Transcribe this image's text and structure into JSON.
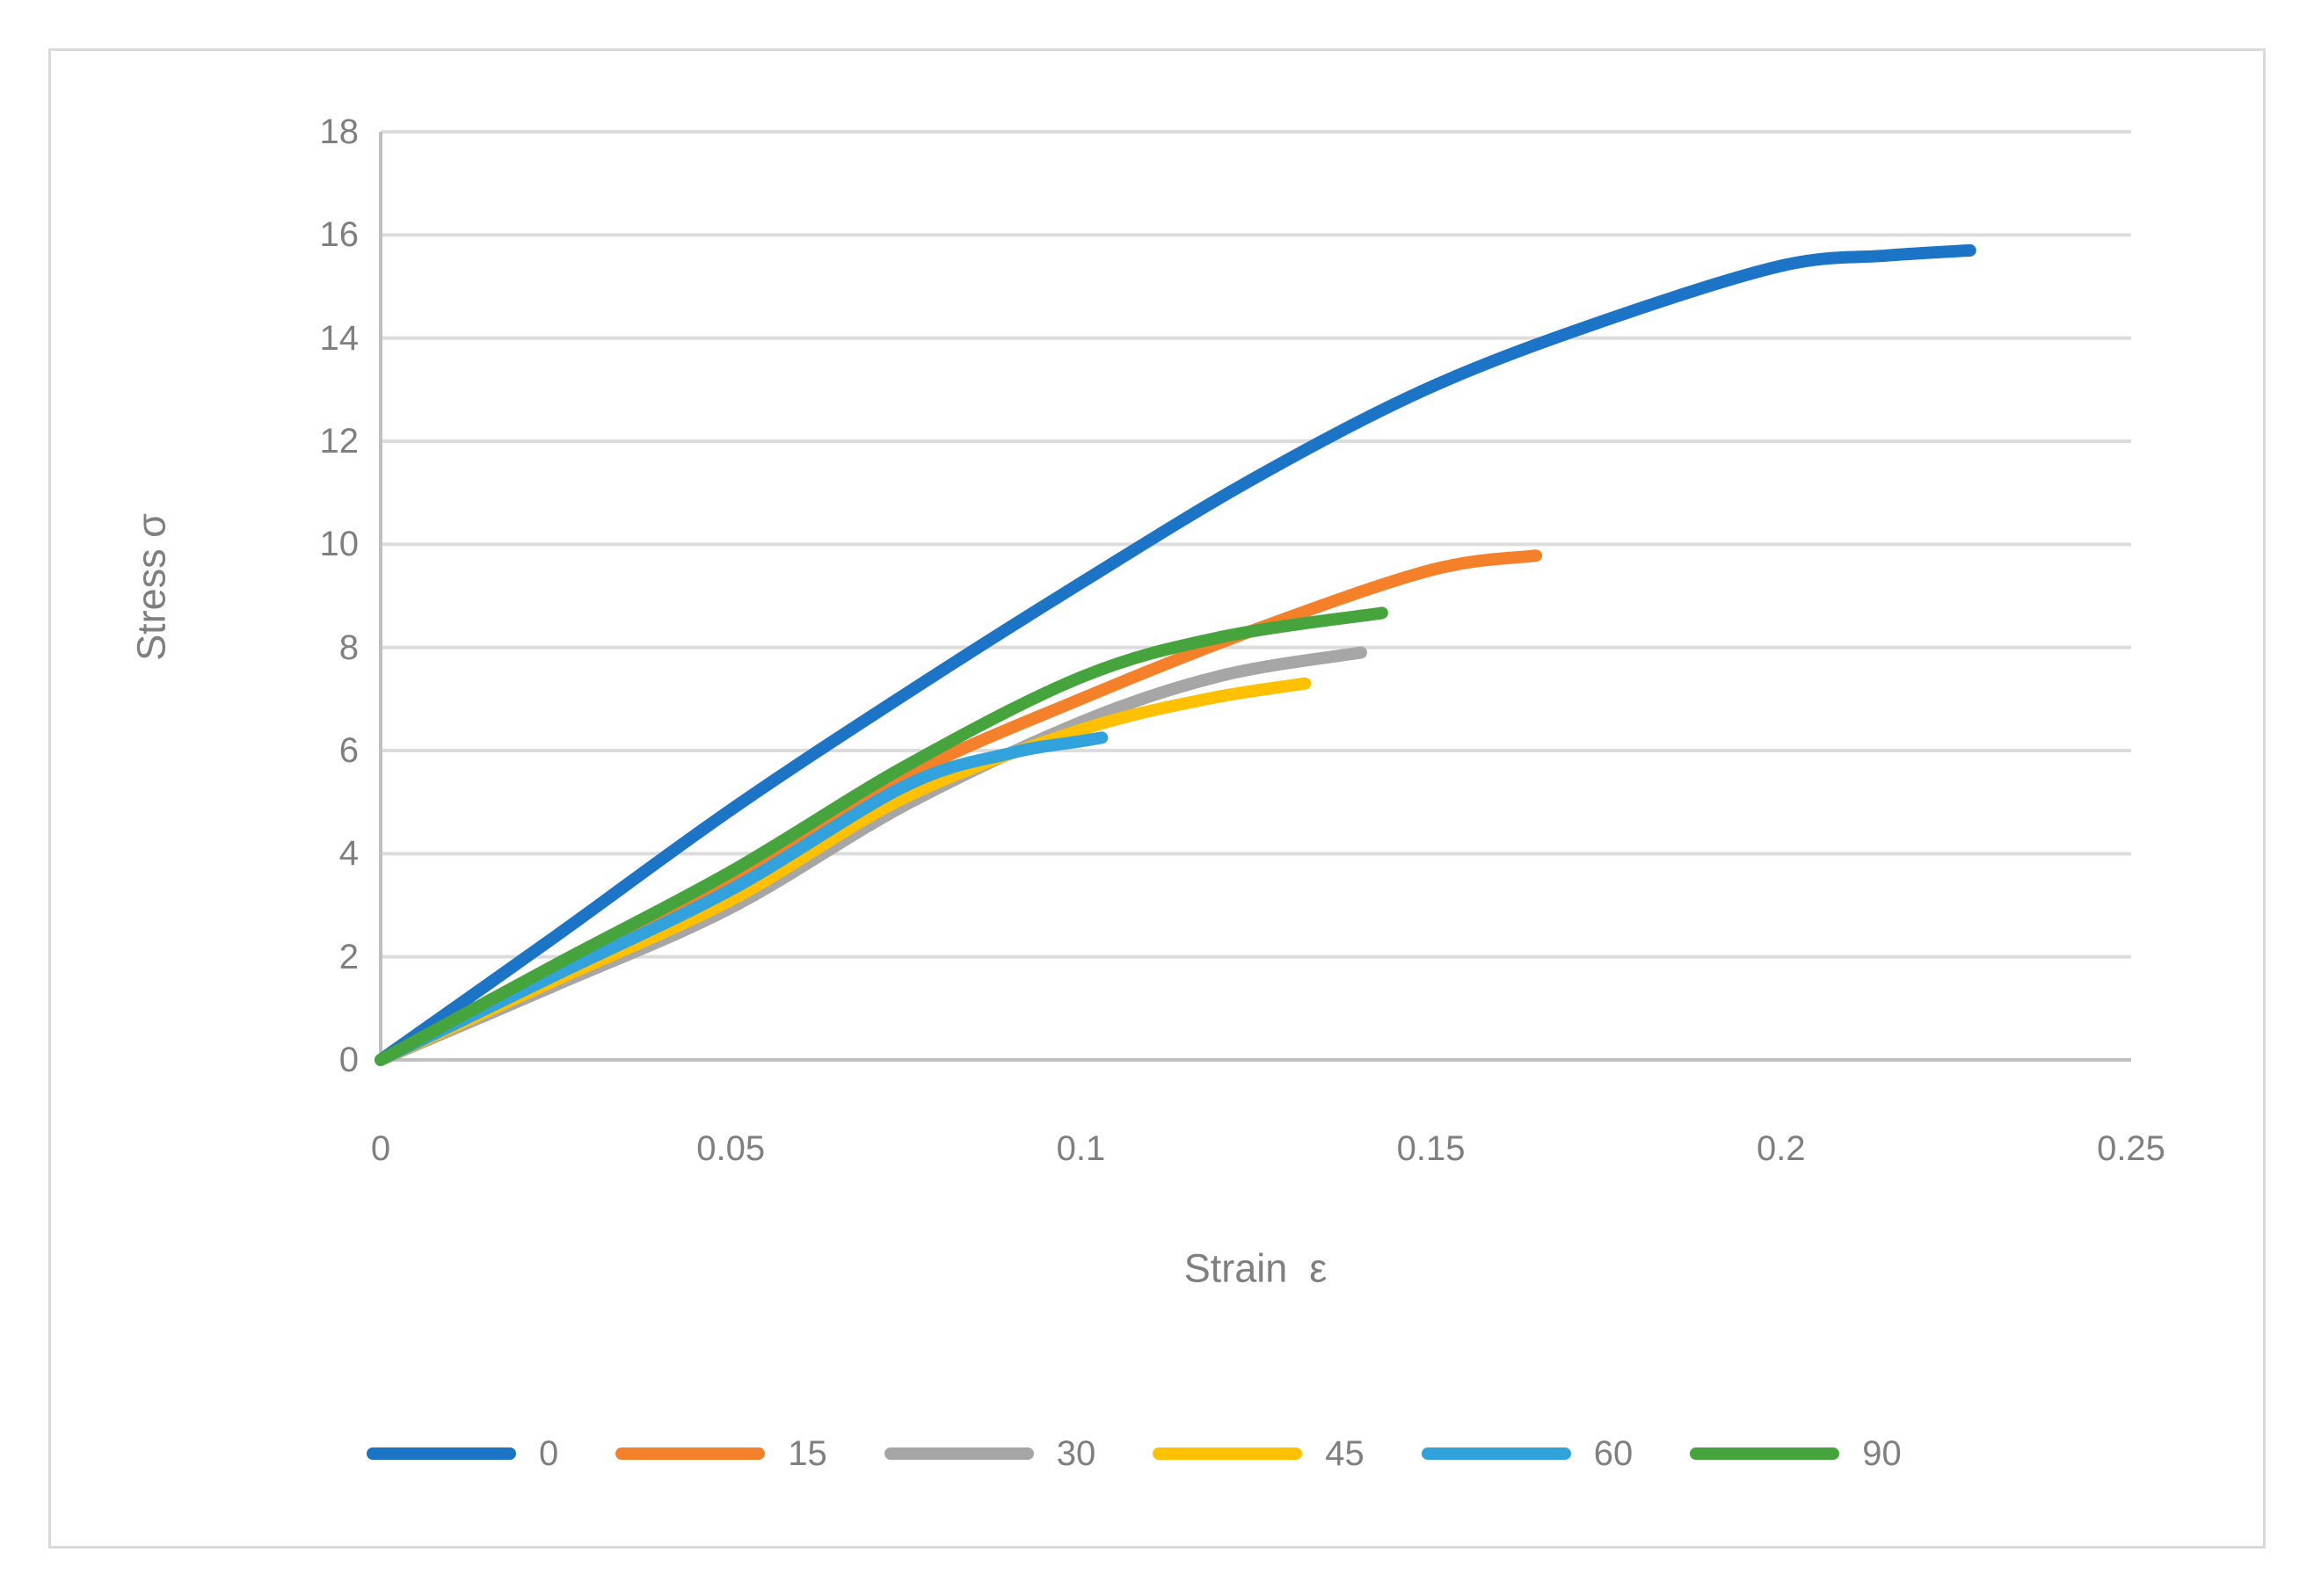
{
  "chart_data": {
    "type": "line",
    "title": "",
    "xlabel": "Strain  ε",
    "ylabel": "Stress σ",
    "xlim": [
      0,
      0.25
    ],
    "ylim": [
      0,
      18
    ],
    "x_tick_labels": [
      "0",
      "0.05",
      "0.1",
      "0.15",
      "0.2",
      "0.25"
    ],
    "x_tick_values": [
      0,
      0.05,
      0.1,
      0.15,
      0.2,
      0.25
    ],
    "y_tick_labels": [
      "0",
      "2",
      "4",
      "6",
      "8",
      "10",
      "12",
      "14",
      "16",
      "18"
    ],
    "y_tick_values": [
      0,
      2,
      4,
      6,
      8,
      10,
      12,
      14,
      16,
      18
    ],
    "grid": "horizontal",
    "legend_position": "bottom",
    "styles": {
      "gridline_color": "#DCDCDC",
      "axis_line_color": "#C0C0C0",
      "text_color": "#7F7F7F",
      "line_width": 14
    },
    "series": [
      {
        "name": "0",
        "color": "#1B74C5",
        "points": [
          [
            0,
            0
          ],
          [
            0.025,
            2.4
          ],
          [
            0.05,
            4.85
          ],
          [
            0.075,
            7.1
          ],
          [
            0.1,
            9.25
          ],
          [
            0.125,
            11.3
          ],
          [
            0.15,
            13.05
          ],
          [
            0.175,
            14.35
          ],
          [
            0.2,
            15.4
          ],
          [
            0.215,
            15.6
          ],
          [
            0.227,
            15.7
          ]
        ]
      },
      {
        "name": "15",
        "color": "#F5802A",
        "points": [
          [
            0,
            0
          ],
          [
            0.025,
            1.7
          ],
          [
            0.05,
            3.45
          ],
          [
            0.075,
            5.5
          ],
          [
            0.1,
            7.0
          ],
          [
            0.125,
            8.35
          ],
          [
            0.15,
            9.5
          ],
          [
            0.165,
            9.78
          ]
        ]
      },
      {
        "name": "30",
        "color": "#A6A6A6",
        "points": [
          [
            0,
            0
          ],
          [
            0.025,
            1.45
          ],
          [
            0.05,
            2.95
          ],
          [
            0.075,
            4.95
          ],
          [
            0.1,
            6.55
          ],
          [
            0.12,
            7.45
          ],
          [
            0.14,
            7.9
          ]
        ]
      },
      {
        "name": "45",
        "color": "#FFC000",
        "points": [
          [
            0,
            0
          ],
          [
            0.025,
            1.55
          ],
          [
            0.05,
            3.1
          ],
          [
            0.075,
            5.1
          ],
          [
            0.1,
            6.4
          ],
          [
            0.118,
            7.0
          ],
          [
            0.132,
            7.3
          ]
        ]
      },
      {
        "name": "60",
        "color": "#31A2DB",
        "points": [
          [
            0,
            0
          ],
          [
            0.025,
            1.65
          ],
          [
            0.05,
            3.3
          ],
          [
            0.075,
            5.32
          ],
          [
            0.09,
            5.95
          ],
          [
            0.1,
            6.18
          ],
          [
            0.103,
            6.25
          ]
        ]
      },
      {
        "name": "90",
        "color": "#45A43B",
        "points": [
          [
            0,
            0
          ],
          [
            0.025,
            1.85
          ],
          [
            0.05,
            3.65
          ],
          [
            0.075,
            5.7
          ],
          [
            0.1,
            7.42
          ],
          [
            0.12,
            8.2
          ],
          [
            0.143,
            8.67
          ]
        ]
      }
    ]
  }
}
